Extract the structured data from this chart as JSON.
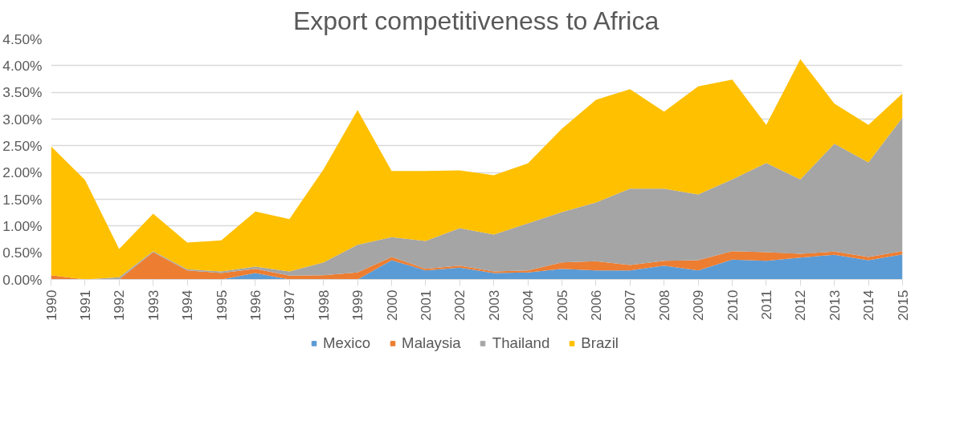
{
  "chart_data": {
    "type": "area",
    "title": "Export competitiveness to Africa",
    "stacked": true,
    "categories": [
      "1990",
      "1991",
      "1992",
      "1993",
      "1994",
      "1995",
      "1996",
      "1997",
      "1998",
      "1999",
      "2000",
      "2001",
      "2002",
      "2003",
      "2004",
      "2005",
      "2006",
      "2007",
      "2008",
      "2009",
      "2010",
      "2011",
      "2012",
      "2013",
      "2014",
      "2015"
    ],
    "series": [
      {
        "name": "Mexico",
        "color": "#5b9bd5",
        "values": [
          0,
          0,
          0,
          0,
          0,
          0,
          0.12,
          0,
          0,
          0,
          0.36,
          0.17,
          0.22,
          0.12,
          0.13,
          0.2,
          0.17,
          0.17,
          0.26,
          0.17,
          0.37,
          0.35,
          0.41,
          0.46,
          0.36,
          0.47
        ]
      },
      {
        "name": "Malaysia",
        "color": "#ed7d31",
        "values": [
          0.08,
          0,
          0,
          0.51,
          0.17,
          0.12,
          0.08,
          0.07,
          0.08,
          0.13,
          0.06,
          0.03,
          0.04,
          0.03,
          0.04,
          0.12,
          0.17,
          0.1,
          0.09,
          0.19,
          0.16,
          0.16,
          0.07,
          0.06,
          0.06,
          0.06
        ]
      },
      {
        "name": "Thailand",
        "color": "#a5a5a5",
        "values": [
          0,
          0,
          0.04,
          0.02,
          0.02,
          0.03,
          0.04,
          0.08,
          0.24,
          0.52,
          0.37,
          0.52,
          0.7,
          0.69,
          0.88,
          0.94,
          1.1,
          1.43,
          1.35,
          1.23,
          1.34,
          1.67,
          1.39,
          2.02,
          1.77,
          2.5
        ]
      },
      {
        "name": "Brazil",
        "color": "#ffc000",
        "values": [
          2.41,
          1.86,
          0.53,
          0.7,
          0.5,
          0.58,
          1.03,
          0.98,
          1.74,
          2.52,
          1.24,
          1.31,
          1.08,
          1.11,
          1.12,
          1.56,
          1.92,
          1.86,
          1.44,
          2.02,
          1.87,
          0.71,
          2.25,
          0.75,
          0.7,
          0.45
        ]
      }
    ],
    "ylim": [
      0,
      4.5
    ],
    "yticks": [
      {
        "value": 0,
        "label": "0.00%"
      },
      {
        "value": 0.5,
        "label": "0.50%"
      },
      {
        "value": 1,
        "label": "1.00%"
      },
      {
        "value": 1.5,
        "label": "1.50%"
      },
      {
        "value": 2,
        "label": "2.00%"
      },
      {
        "value": 2.5,
        "label": "2.50%"
      },
      {
        "value": 3,
        "label": "3.00%"
      },
      {
        "value": 3.5,
        "label": "3.50%"
      },
      {
        "value": 4,
        "label": "4.00%"
      },
      {
        "value": 4.5,
        "label": "4.50%"
      }
    ],
    "grid": "y",
    "legend": "bottom"
  }
}
